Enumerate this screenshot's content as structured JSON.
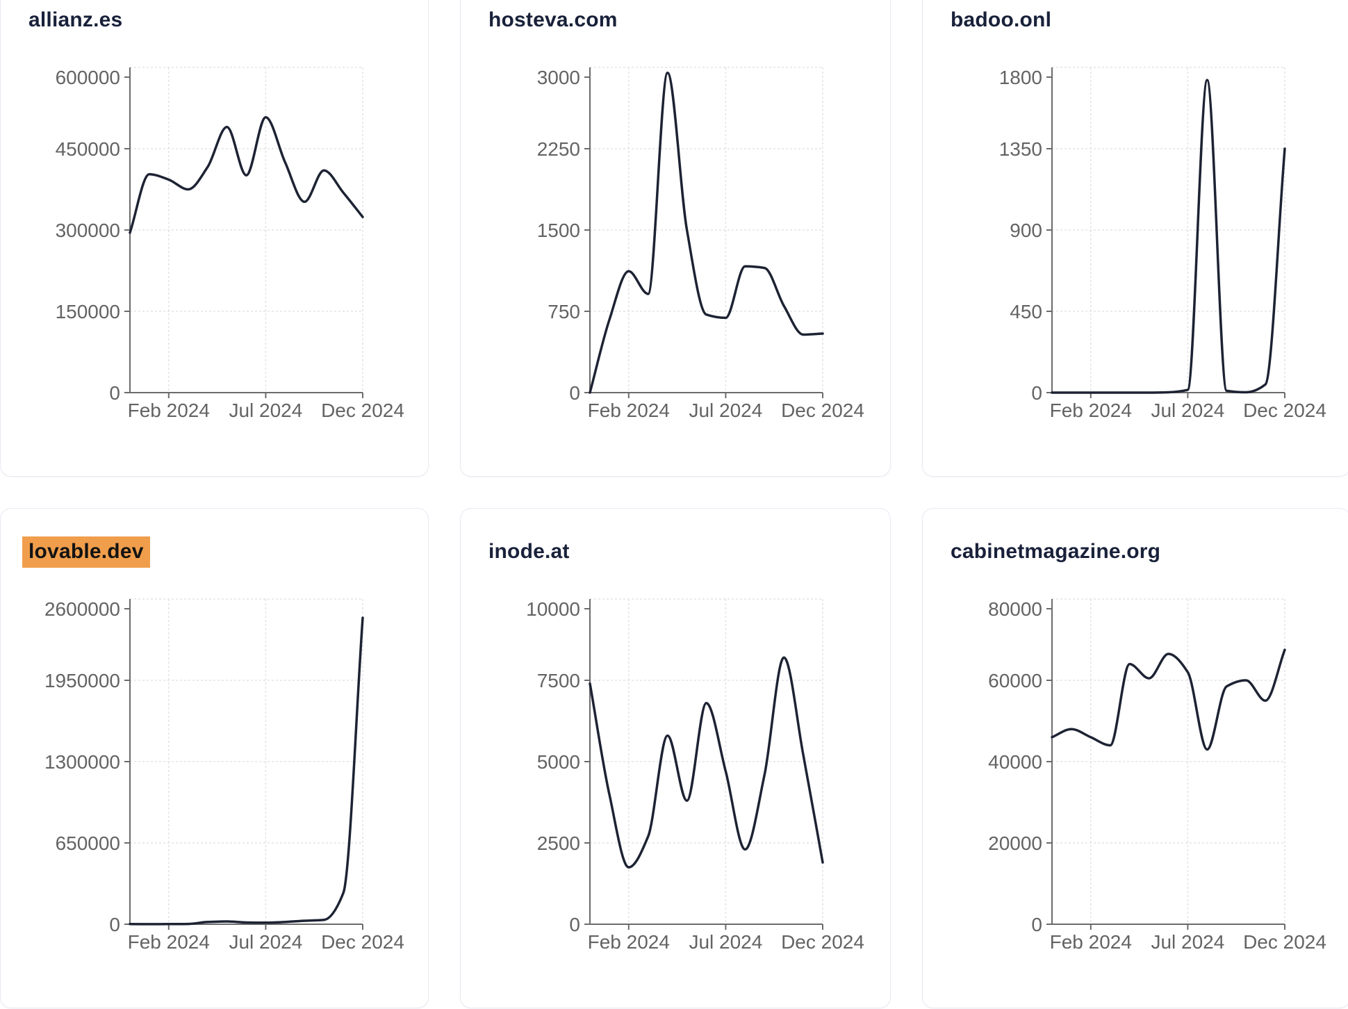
{
  "style": {
    "page_bg": "#ffffff",
    "card_bg": "#ffffff",
    "card_border": "#e8eaf2",
    "title_color": "#19213a",
    "axis_color": "#6b6b6b",
    "tick_label_color": "#636363",
    "grid_color": "#e3e3e7",
    "line_color": "#1d2333",
    "highlight_bg": "#f09e4c",
    "highlight_text": "#131313"
  },
  "chart_data": [
    {
      "type": "line",
      "title": "allianz.es",
      "title_highlighted": false,
      "x": [
        "Dec 2023",
        "Jan 2024",
        "Feb 2024",
        "Mar 2024",
        "Apr 2024",
        "May 2024",
        "Jun 2024",
        "Jul 2024",
        "Aug 2024",
        "Sep 2024",
        "Oct 2024",
        "Nov 2024",
        "Dec 2024"
      ],
      "values": [
        295000,
        403000,
        393000,
        375000,
        416000,
        490000,
        401000,
        508000,
        425000,
        352000,
        410000,
        369000,
        324000
      ],
      "ylim": [
        0,
        600000
      ],
      "y_ticks": [
        0,
        150000,
        300000,
        450000,
        600000
      ],
      "x_tick_labels": [
        "Feb 2024",
        "Jul 2024",
        "Dec 2024"
      ],
      "x_tick_indices": [
        2,
        7,
        12
      ],
      "grid": true
    },
    {
      "type": "line",
      "title": "hosteva.com",
      "title_highlighted": false,
      "x": [
        "Dec 2023",
        "Jan 2024",
        "Feb 2024",
        "Mar 2024",
        "Apr 2024",
        "May 2024",
        "Jun 2024",
        "Jul 2024",
        "Aug 2024",
        "Sep 2024",
        "Oct 2024",
        "Nov 2024",
        "Dec 2024"
      ],
      "values": [
        0,
        670,
        1120,
        910,
        2950,
        1500,
        720,
        690,
        1165,
        1150,
        800,
        535,
        545
      ],
      "ylim": [
        0,
        3000
      ],
      "y_ticks": [
        0,
        750,
        1500,
        2250,
        3000
      ],
      "x_tick_labels": [
        "Feb 2024",
        "Jul 2024",
        "Dec 2024"
      ],
      "x_tick_indices": [
        2,
        7,
        12
      ],
      "grid": true
    },
    {
      "type": "line",
      "title": "badoo.onl",
      "title_highlighted": false,
      "x": [
        "Dec 2023",
        "Jan 2024",
        "Feb 2024",
        "Mar 2024",
        "Apr 2024",
        "May 2024",
        "Jun 2024",
        "Jul 2024",
        "Aug 2024",
        "Sep 2024",
        "Oct 2024",
        "Nov 2024",
        "Dec 2024"
      ],
      "values": [
        0,
        0,
        0,
        0,
        0,
        0,
        2,
        15,
        1730,
        10,
        2,
        45,
        1350
      ],
      "ylim": [
        0,
        1800
      ],
      "y_ticks": [
        0,
        450,
        900,
        1350,
        1800
      ],
      "x_tick_labels": [
        "Feb 2024",
        "Jul 2024",
        "Dec 2024"
      ],
      "x_tick_indices": [
        2,
        7,
        12
      ],
      "grid": true
    },
    {
      "type": "line",
      "title": "lovable.dev",
      "title_highlighted": true,
      "x": [
        "Dec 2023",
        "Jan 2024",
        "Feb 2024",
        "Mar 2024",
        "Apr 2024",
        "May 2024",
        "Jun 2024",
        "Jul 2024",
        "Aug 2024",
        "Sep 2024",
        "Oct 2024",
        "Nov 2024",
        "Dec 2024"
      ],
      "values": [
        1000,
        800,
        900,
        2000,
        18000,
        22000,
        14000,
        12000,
        18000,
        28000,
        35000,
        250000,
        2450000
      ],
      "ylim": [
        0,
        2600000
      ],
      "y_ticks": [
        0,
        650000,
        1300000,
        1950000,
        2600000
      ],
      "x_tick_labels": [
        "Feb 2024",
        "Jul 2024",
        "Dec 2024"
      ],
      "x_tick_indices": [
        2,
        7,
        12
      ],
      "grid": true
    },
    {
      "type": "line",
      "title": "inode.at",
      "title_highlighted": false,
      "x": [
        "Dec 2023",
        "Jan 2024",
        "Feb 2024",
        "Mar 2024",
        "Apr 2024",
        "May 2024",
        "Jun 2024",
        "Jul 2024",
        "Aug 2024",
        "Sep 2024",
        "Oct 2024",
        "Nov 2024",
        "Dec 2024"
      ],
      "values": [
        7400,
        4000,
        1750,
        2700,
        5800,
        3800,
        6800,
        4700,
        2300,
        4600,
        8200,
        5200,
        1900
      ],
      "ylim": [
        0,
        10000
      ],
      "y_ticks": [
        0,
        2500,
        5000,
        7500,
        10000
      ],
      "x_tick_labels": [
        "Feb 2024",
        "Jul 2024",
        "Dec 2024"
      ],
      "x_tick_indices": [
        2,
        7,
        12
      ],
      "grid": true
    },
    {
      "type": "line",
      "title": "cabinetmagazine.org",
      "title_highlighted": false,
      "x": [
        "Dec 2023",
        "Jan 2024",
        "Feb 2024",
        "Mar 2024",
        "Apr 2024",
        "May 2024",
        "Jun 2024",
        "Jul 2024",
        "Aug 2024",
        "Sep 2024",
        "Oct 2024",
        "Nov 2024",
        "Dec 2024"
      ],
      "values": [
        46000,
        48000,
        46000,
        44000,
        64000,
        60500,
        66500,
        62000,
        43000,
        58500,
        60000,
        55000,
        67500
      ],
      "ylim": [
        0,
        80000
      ],
      "y_ticks": [
        0,
        20000,
        40000,
        60000,
        80000
      ],
      "x_tick_labels": [
        "Feb 2024",
        "Jul 2024",
        "Dec 2024"
      ],
      "x_tick_indices": [
        2,
        7,
        12
      ],
      "grid": true
    }
  ]
}
